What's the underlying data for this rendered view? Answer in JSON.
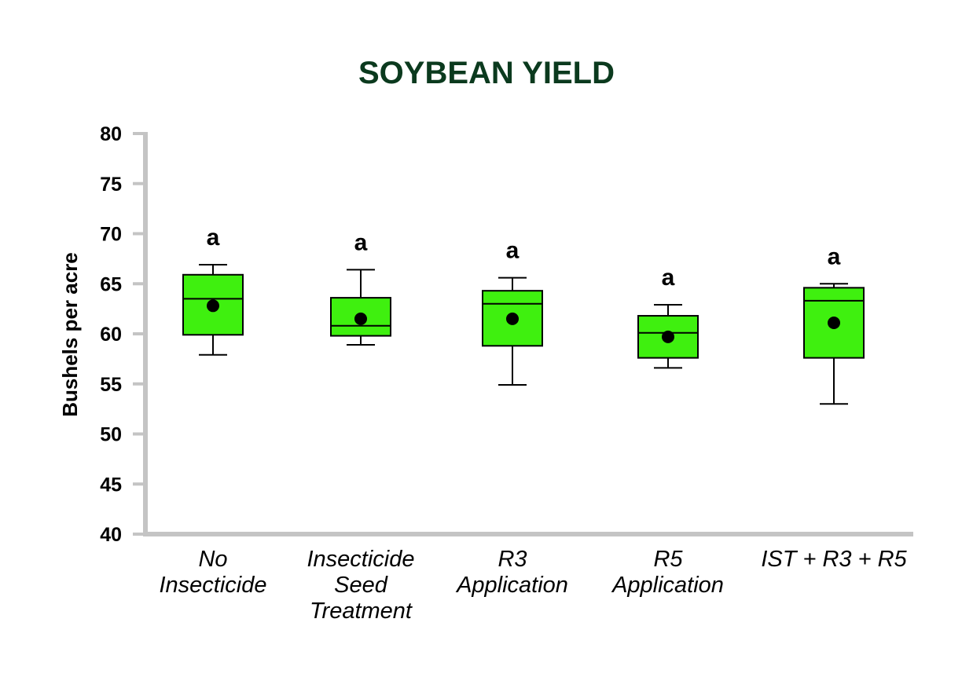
{
  "chart_data": {
    "type": "box",
    "title": "SOYBEAN YIELD",
    "ylabel": "Bushels per acre",
    "xlabel": "",
    "ylim": [
      40,
      80
    ],
    "yticks": [
      "40",
      "45",
      "50",
      "55",
      "60",
      "65",
      "70",
      "75",
      "80"
    ],
    "categories": [
      {
        "lines": [
          "No",
          "Insecticide"
        ]
      },
      {
        "lines": [
          "Insecticide",
          "Seed",
          "Treatment"
        ]
      },
      {
        "lines": [
          "R3",
          "Application"
        ]
      },
      {
        "lines": [
          "R5",
          "Application"
        ]
      },
      {
        "lines": [
          "IST + R3 + R5"
        ]
      }
    ],
    "boxes": [
      {
        "min": 57.9,
        "q1": 59.9,
        "median": 63.5,
        "q3": 65.9,
        "max": 66.9,
        "mean": 62.8,
        "letter": "a"
      },
      {
        "min": 58.9,
        "q1": 59.8,
        "median": 60.8,
        "q3": 63.6,
        "max": 66.4,
        "mean": 61.5,
        "letter": "a"
      },
      {
        "min": 54.9,
        "q1": 58.8,
        "median": 63.0,
        "q3": 64.3,
        "max": 65.6,
        "mean": 61.5,
        "letter": "a"
      },
      {
        "min": 56.6,
        "q1": 57.6,
        "median": 60.1,
        "q3": 61.8,
        "max": 62.9,
        "mean": 59.7,
        "letter": "a"
      },
      {
        "min": 53.0,
        "q1": 57.6,
        "median": 63.3,
        "q3": 64.6,
        "max": 65.0,
        "mean": 61.1,
        "letter": "a"
      }
    ],
    "colors": {
      "title": "#0b3a1e",
      "box_fill": "#3ff00f",
      "axis": "#c4c4c4",
      "text": "#000000"
    }
  }
}
